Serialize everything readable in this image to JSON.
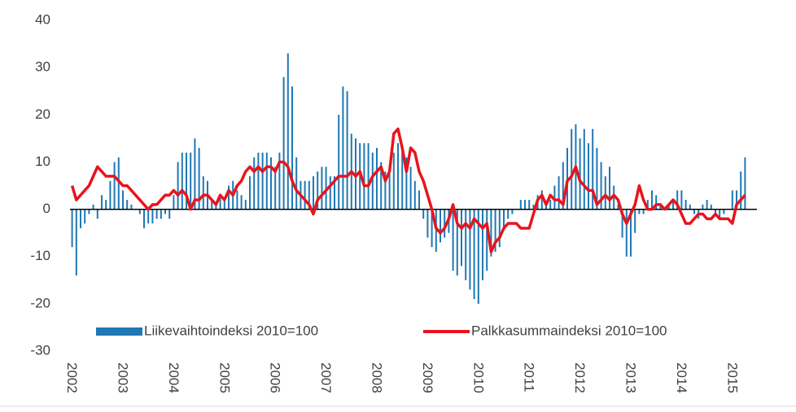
{
  "chart_data": {
    "type": "bar-line",
    "categories": [
      "2002",
      null,
      null,
      null,
      null,
      null,
      null,
      null,
      null,
      null,
      null,
      null,
      "2003",
      null,
      null,
      null,
      null,
      null,
      null,
      null,
      null,
      null,
      null,
      null,
      "2004",
      null,
      null,
      null,
      null,
      null,
      null,
      null,
      null,
      null,
      null,
      null,
      "2005",
      null,
      null,
      null,
      null,
      null,
      null,
      null,
      null,
      null,
      null,
      null,
      "2006",
      null,
      null,
      null,
      null,
      null,
      null,
      null,
      null,
      null,
      null,
      null,
      "2007",
      null,
      null,
      null,
      null,
      null,
      null,
      null,
      null,
      null,
      null,
      null,
      "2008",
      null,
      null,
      null,
      null,
      null,
      null,
      null,
      null,
      null,
      null,
      null,
      "2009",
      null,
      null,
      null,
      null,
      null,
      null,
      null,
      null,
      null,
      null,
      null,
      "2010",
      null,
      null,
      null,
      null,
      null,
      null,
      null,
      null,
      null,
      null,
      null,
      "2011",
      null,
      null,
      null,
      null,
      null,
      null,
      null,
      null,
      null,
      null,
      null,
      "2012",
      null,
      null,
      null,
      null,
      null,
      null,
      null,
      null,
      null,
      null,
      null,
      "2013",
      null,
      null,
      null,
      null,
      null,
      null,
      null,
      null,
      null,
      null,
      null,
      "2014",
      null,
      null,
      null,
      null,
      null,
      null,
      null,
      null,
      null,
      null,
      null,
      "2015",
      null,
      null,
      null
    ],
    "series": [
      {
        "name": "Liikevaihtoindeksi 2010=100",
        "kind": "bar",
        "color": "#1f78b4",
        "values": [
          -8,
          -14,
          -4,
          -3,
          -1,
          1,
          -2,
          3,
          2,
          6,
          10,
          11,
          4,
          2,
          1,
          0,
          -1,
          -4,
          -3,
          -3,
          -2,
          -2,
          -1,
          -2,
          3,
          10,
          12,
          12,
          12,
          15,
          13,
          7,
          6,
          2,
          1,
          3,
          2,
          5,
          6,
          4,
          3,
          2,
          7,
          11,
          12,
          12,
          12,
          11,
          9,
          12,
          28,
          33,
          26,
          11,
          6,
          6,
          6,
          7,
          8,
          9,
          9,
          7,
          7,
          20,
          26,
          25,
          16,
          15,
          14,
          14,
          14,
          12,
          13,
          10,
          8,
          9,
          12,
          14,
          13,
          11,
          9,
          6,
          4,
          -2,
          -6,
          -8,
          -9,
          -7,
          -6,
          -5,
          -13,
          -14,
          -12,
          -15,
          -17,
          -19,
          -20,
          -15,
          -13,
          -10,
          -9,
          -8,
          -4,
          -2,
          -1,
          0,
          2,
          2,
          2,
          1,
          3,
          4,
          1,
          2,
          5,
          7,
          10,
          13,
          17,
          18,
          15,
          17,
          14,
          17,
          13,
          10,
          7,
          9,
          5,
          1,
          -6,
          -10,
          -10,
          -5,
          -1,
          -1,
          2,
          4,
          3,
          1,
          0,
          1,
          2,
          4,
          4,
          2,
          1,
          -1,
          -2,
          1,
          2,
          1,
          -1,
          -2,
          -1,
          0,
          4,
          4,
          8,
          11
        ]
      },
      {
        "name": "Palkkasummaindeksi 2010=100",
        "kind": "line",
        "color": "#e8141c",
        "values": [
          5,
          2,
          3,
          4,
          5,
          7,
          9,
          8,
          7,
          7,
          7,
          6,
          5,
          5,
          4,
          3,
          2,
          1,
          0,
          1,
          1,
          2,
          3,
          3,
          4,
          3,
          4,
          3,
          0,
          2,
          2,
          3,
          3,
          2,
          1,
          3,
          2,
          4,
          3,
          5,
          6,
          8,
          9,
          8,
          9,
          8,
          9,
          9,
          8,
          10,
          10,
          9,
          6,
          4,
          3,
          2,
          1,
          -1,
          2,
          3,
          4,
          5,
          6,
          7,
          7,
          7,
          8,
          7,
          8,
          5,
          5,
          7,
          8,
          9,
          6,
          8,
          16,
          17,
          13,
          8,
          13,
          12,
          8,
          6,
          3,
          0,
          -4,
          -5,
          -4,
          -2,
          1,
          -3,
          -4,
          -3,
          -4,
          -2,
          -3,
          -4,
          -3,
          -9,
          -7,
          -6,
          -4,
          -3,
          -3,
          -3,
          -4,
          -4,
          -4,
          -1,
          2,
          3,
          1,
          3,
          2,
          2,
          1,
          6,
          7,
          9,
          6,
          5,
          4,
          4,
          1,
          2,
          3,
          2,
          3,
          2,
          -1,
          -3,
          -1,
          1,
          5,
          2,
          0,
          0,
          1,
          1,
          0,
          1,
          2,
          1,
          -1,
          -3,
          -3,
          -2,
          -1,
          -1,
          -2,
          -2,
          -1,
          -2,
          -2,
          -2,
          -3,
          1,
          2,
          3
        ]
      }
    ],
    "ylim": [
      -30,
      40
    ],
    "yticks": [
      -30,
      -20,
      -10,
      0,
      10,
      20,
      30,
      40
    ],
    "legend": "bottom"
  }
}
